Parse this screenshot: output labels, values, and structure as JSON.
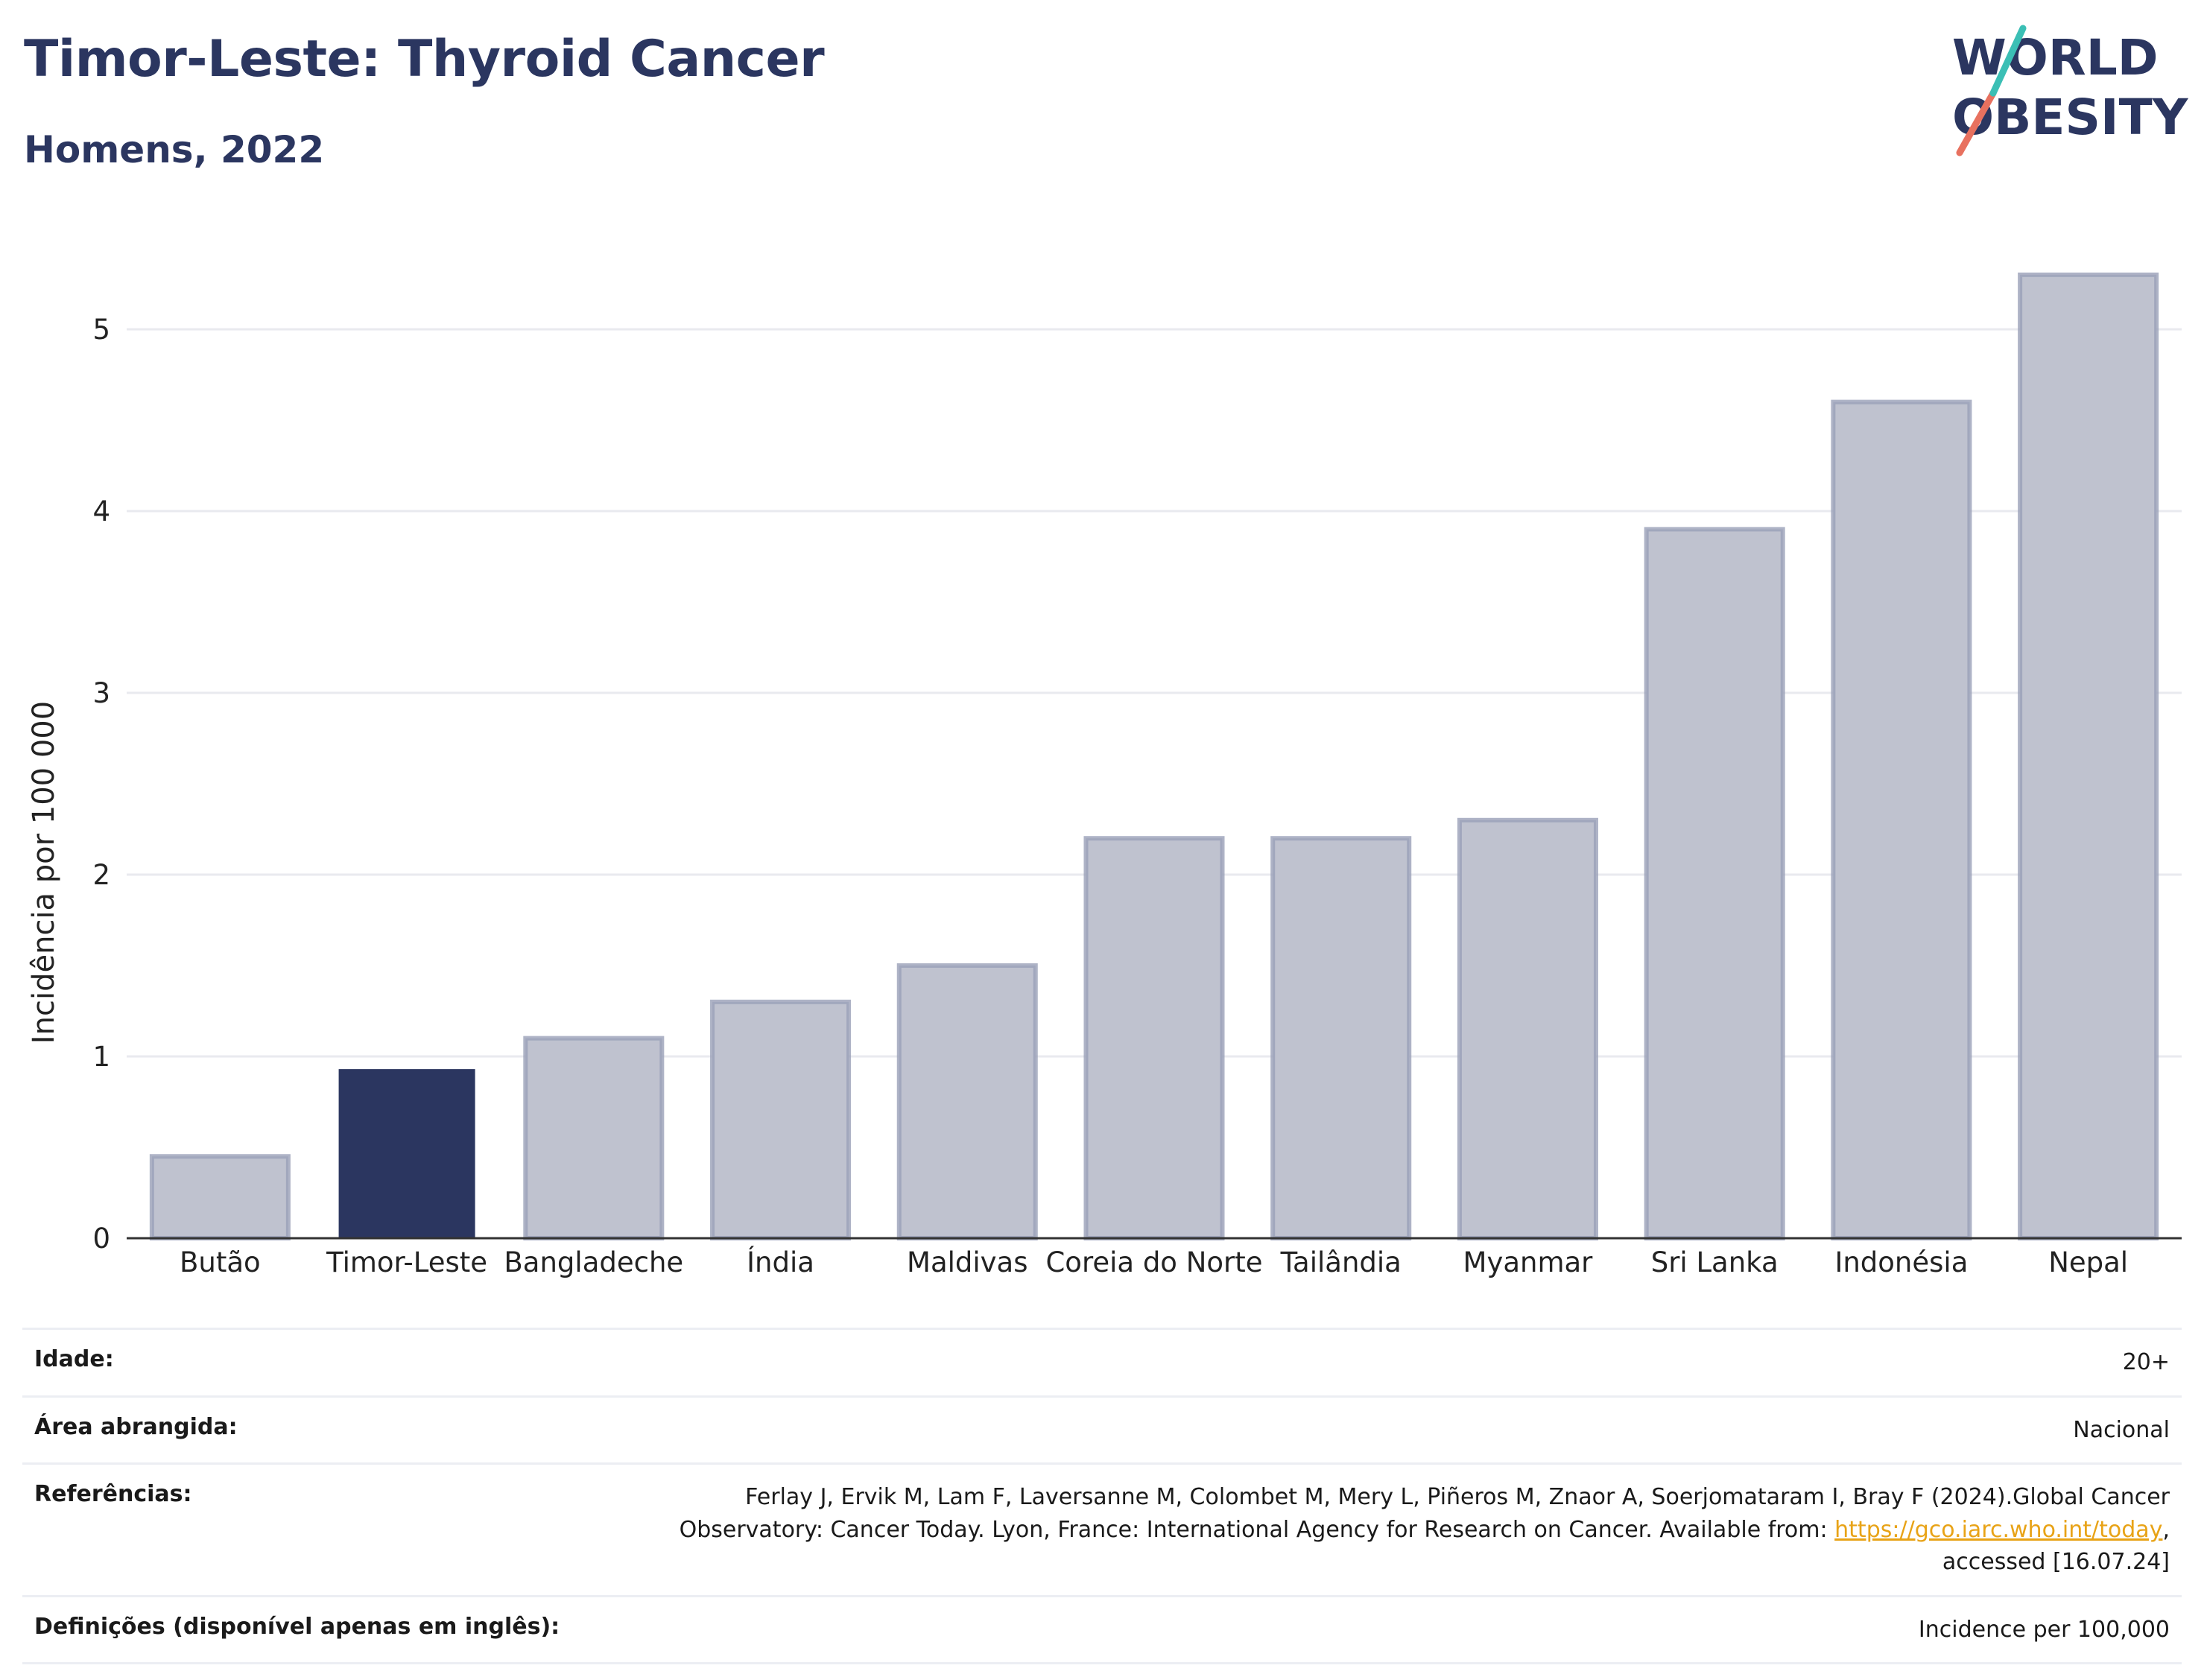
{
  "header": {
    "title": "Timor-Leste: Thyroid Cancer",
    "subtitle": "Homens, 2022"
  },
  "logo": {
    "line1": "WORLD",
    "line2": "OBESITY"
  },
  "chart_data": {
    "type": "bar",
    "ylabel": "Incidência por 100 000",
    "categories": [
      "Butão",
      "Timor-Leste",
      "Bangladeche",
      "Índia",
      "Maldivas",
      "Coreia do Norte",
      "Tailândia",
      "Myanmar",
      "Sri Lanka",
      "Indonésia",
      "Nepal"
    ],
    "values": [
      0.45,
      0.93,
      1.1,
      1.3,
      1.5,
      2.2,
      2.2,
      2.3,
      3.9,
      4.6,
      5.3
    ],
    "highlight": "Timor-Leste",
    "ylim": [
      0,
      5.5
    ],
    "yticks": [
      0,
      1,
      2,
      3,
      4,
      5
    ],
    "grid": true,
    "colors": {
      "highlight": "#2b3660",
      "bar": "#bfc2cf",
      "bar_border": "#9aa0b8"
    }
  },
  "meta": {
    "age_label": "Idade:",
    "age_value": "20+",
    "area_label": "Área abrangida:",
    "area_value": "Nacional",
    "ref_label": "Referências:",
    "ref_text_1": "Ferlay J, Ervik M, Lam F, Laversanne M, Colombet M, Mery L, Piñeros M, Znaor A, Soerjomataram I, Bray F (2024).Global Cancer Observatory: Cancer Today. Lyon, France: International Agency for Research on Cancer. Available from: ",
    "ref_link": "https://gco.iarc.who.int/today",
    "ref_text_2": ", accessed [16.07.24]",
    "def_label": "Definições (disponível apenas em inglês):",
    "def_value": "Incidence per 100,000"
  }
}
